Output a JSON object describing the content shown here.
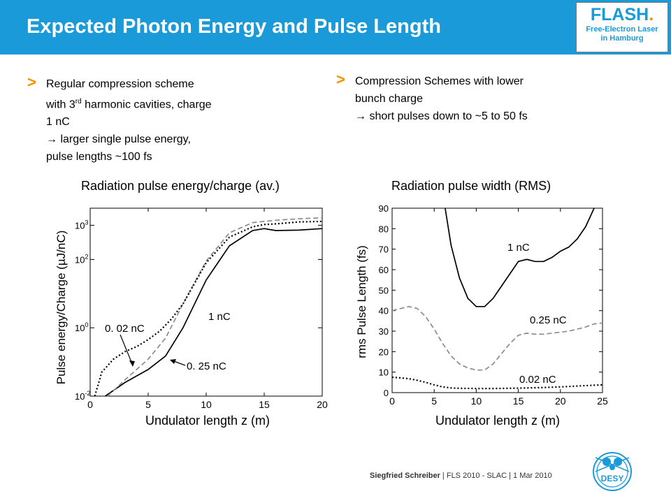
{
  "header": {
    "title": "Expected Photon Energy and Pulse Length",
    "logo_word": "FLASH",
    "logo_dot": ".",
    "logo_sub_1": "Free-Electron Laser",
    "logo_sub_2": "in Hamburg",
    "accent_color": "#1a9ad9"
  },
  "bullets": {
    "marker": ">",
    "left": {
      "line1": "Regular compression scheme",
      "line2_pre": "with 3",
      "line2_sup": "rd",
      "line2_post": " harmonic cavities, charge",
      "line3": "1 nC",
      "line4": "→ larger single pulse energy,",
      "line5": "pulse lengths ~100 fs"
    },
    "right": {
      "line1": "Compression Schemes with lower",
      "line2": "bunch charge",
      "line3": "→ short pulses down to ~5 to 50 fs"
    }
  },
  "chart_data": [
    {
      "type": "line",
      "title": "Radiation pulse energy/charge (av.)",
      "xlabel": "Undulator length  z (m)",
      "ylabel": "Pulse energy/Charge (µJ/nC)",
      "xlim": [
        0,
        20
      ],
      "ylim_log10": [
        -2,
        3.5
      ],
      "y_scale": "log",
      "x_ticks": [
        0,
        5,
        10,
        15,
        20
      ],
      "y_ticks": [
        {
          "base": "10",
          "exp": "-2",
          "value": 0.01
        },
        {
          "base": "10",
          "exp": "0",
          "value": 1
        },
        {
          "base": "10",
          "exp": "2",
          "value": 100
        },
        {
          "base": "10",
          "exp": "3",
          "value": 1000
        }
      ],
      "annotations": [
        "0. 02 nC",
        "1 nC",
        "0. 25 nC"
      ],
      "series": [
        {
          "name": "1 nC",
          "style": "solid",
          "color": "#000000",
          "x": [
            1.3,
            3,
            5,
            6.5,
            8,
            10,
            12,
            14,
            15,
            16,
            18,
            20
          ],
          "y": [
            0.01,
            0.025,
            0.06,
            0.15,
            1.0,
            25,
            250,
            700,
            800,
            700,
            720,
            800
          ]
        },
        {
          "name": "0.25 nC",
          "style": "dashed",
          "color": "#8c8c8c",
          "x": [
            1.5,
            3,
            4,
            5,
            6.5,
            8,
            10,
            12,
            14,
            15,
            16,
            18,
            20
          ],
          "y": [
            0.01,
            0.03,
            0.06,
            0.12,
            0.5,
            5,
            90,
            600,
            1200,
            1300,
            1400,
            1550,
            1650
          ]
        },
        {
          "name": "0.02 nC",
          "style": "dotted",
          "color": "#000000",
          "x": [
            0.4,
            1,
            2,
            3,
            4,
            5,
            6,
            7,
            8,
            9,
            10,
            12,
            14,
            15,
            16,
            18,
            20
          ],
          "y": [
            0.01,
            0.05,
            0.12,
            0.2,
            0.28,
            0.45,
            0.8,
            1.8,
            5,
            20,
            80,
            450,
            900,
            1050,
            1100,
            1250,
            1300
          ]
        }
      ]
    },
    {
      "type": "line",
      "title": "Radiation pulse width (RMS)",
      "xlabel": "Undulator length  z (m)",
      "ylabel": "rms Pulse Length (fs)",
      "xlim": [
        0,
        25
      ],
      "ylim": [
        0,
        90
      ],
      "x_ticks": [
        0,
        5,
        10,
        15,
        20,
        25
      ],
      "y_ticks": [
        0,
        10,
        20,
        30,
        40,
        50,
        60,
        70,
        80,
        90
      ],
      "annotations": [
        "1 nC",
        "0.25 nC",
        "0.02 nC"
      ],
      "series": [
        {
          "name": "1 nC",
          "style": "solid",
          "color": "#000000",
          "x": [
            6.3,
            7,
            8,
            9,
            10,
            11,
            12,
            13,
            14,
            15,
            16,
            17,
            18,
            19,
            20,
            21,
            22,
            23,
            24
          ],
          "y": [
            90,
            72,
            56,
            46,
            42,
            42,
            46,
            52,
            58,
            64,
            65,
            64,
            64,
            66,
            69,
            71,
            75,
            81,
            90
          ]
        },
        {
          "name": "0.25 nC",
          "style": "dashed",
          "color": "#8c8c8c",
          "x": [
            0,
            1,
            2,
            3,
            4,
            5,
            6,
            7,
            8,
            9,
            10,
            11,
            12,
            13,
            14,
            15,
            16,
            17,
            18,
            19,
            20,
            21,
            22,
            23,
            24,
            25
          ],
          "y": [
            40,
            41,
            42,
            41,
            37,
            31,
            24,
            18,
            14,
            12,
            11,
            11,
            14,
            19,
            24,
            28,
            29,
            28.5,
            28.5,
            29,
            29.5,
            30,
            31,
            32,
            33.5,
            34
          ]
        },
        {
          "name": "0.02 nC",
          "style": "dotted",
          "color": "#000000",
          "x": [
            0,
            1,
            2,
            3,
            4,
            5,
            6,
            7,
            8,
            10,
            12,
            14,
            16,
            18,
            20,
            22,
            24,
            25
          ],
          "y": [
            7.5,
            7.2,
            6.8,
            6,
            5,
            3.8,
            2.8,
            2.3,
            2.1,
            2,
            2,
            2.1,
            2.3,
            2.5,
            2.8,
            3.2,
            3.6,
            3.8
          ]
        }
      ]
    }
  ],
  "footer": {
    "author": "Siegfried Schreiber",
    "details": " | FLS 2010 - SLAC |  1 Mar 2010",
    "logo_text": "DESY",
    "logo_color": "#1a9ad9"
  }
}
